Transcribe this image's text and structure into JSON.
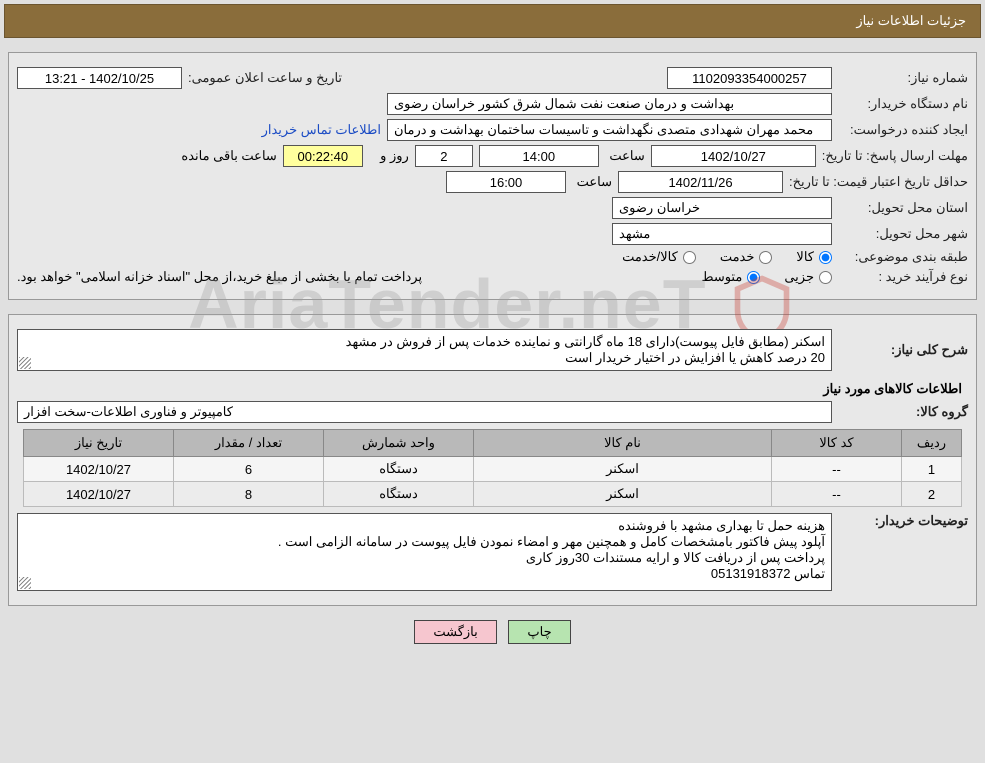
{
  "header": {
    "title": "جزئیات اطلاعات نیاز"
  },
  "fields": {
    "need_no_label": "شماره نیاز:",
    "need_no": "1102093354000257",
    "announce_label": "تاریخ و ساعت اعلان عمومی:",
    "announce_value": "1402/10/25 - 13:21",
    "buyer_label": "نام دستگاه خریدار:",
    "buyer_value": "بهداشت و درمان صنعت نفت شمال شرق کشور   خراسان رضوی",
    "requester_label": "ایجاد کننده درخواست:",
    "requester_value": "محمد مهران شهدادی متصدی نگهداشت و تاسیسات ساختمان بهداشت و درمان",
    "contact_link": "اطلاعات تماس خریدار",
    "resp_deadline_label": "مهلت ارسال پاسخ: تا تاریخ:",
    "resp_deadline_date": "1402/10/27",
    "hour_label": "ساعت",
    "resp_deadline_time": "14:00",
    "days_remaining": "2",
    "days_and_label": "روز و",
    "time_remaining": "00:22:40",
    "remaining_label": "ساعت باقی مانده",
    "price_valid_label": "حداقل تاریخ اعتبار قیمت: تا تاریخ:",
    "price_valid_date": "1402/11/26",
    "price_valid_time": "16:00",
    "province_label": "استان محل تحویل:",
    "province_value": "خراسان رضوی",
    "city_label": "شهر محل تحویل:",
    "city_value": "مشهد",
    "category_label": "طبقه بندی موضوعی:",
    "cat_opt_goods": "کالا",
    "cat_opt_service": "خدمت",
    "cat_opt_both": "کالا/خدمت",
    "purchase_type_label": "نوع فرآیند خرید :",
    "pt_small": "جزیی",
    "pt_medium": "متوسط",
    "purchase_note": "پرداخت تمام یا بخشی از مبلغ خرید،از محل \"اسناد خزانه اسلامی\" خواهد بود."
  },
  "desc": {
    "overall_label": "شرح کلی نیاز:",
    "overall_value": "اسکنر (مطابق فایل پیوست)دارای 18 ماه گارانتی و نماینده خدمات پس از فروش در مشهد\n20 درصد کاهش یا افزایش در اختیار خریدار است",
    "items_header": "اطلاعات کالاهای مورد نیاز",
    "group_label": "گروه کالا:",
    "group_value": "کامپیوتر و فناوری اطلاعات-سخت افزار"
  },
  "table": {
    "columns": [
      "ردیف",
      "کد کالا",
      "نام کالا",
      "واحد شمارش",
      "تعداد / مقدار",
      "تاریخ نیاز"
    ],
    "rows": [
      [
        "1",
        "--",
        "اسکنر",
        "دستگاه",
        "6",
        "1402/10/27"
      ],
      [
        "2",
        "--",
        "اسکنر",
        "دستگاه",
        "8",
        "1402/10/27"
      ]
    ],
    "col_widths": [
      "60px",
      "130px",
      "auto",
      "150px",
      "150px",
      "150px"
    ]
  },
  "buyer_notes": {
    "label": "توضیحات خریدار:",
    "value": "هزینه حمل تا بهداری مشهد با فروشنده\nآپلود پیش فاکتور بامشخصات کامل و همچنین مهر و امضاء نمودن فایل پیوست در سامانه الزامی است .\nپرداخت پس از دریافت کالا و ارایه مستندات  30روز کاری\nتماس 05131918372"
  },
  "actions": {
    "print": "چاپ",
    "back": "بازگشت"
  },
  "watermark": "AriaTender.neT",
  "colors": {
    "header_bg": "#8a6d3b",
    "link": "#1a4bc4",
    "btn_green": "#b7e4b0",
    "btn_pink": "#f6c6cf",
    "time_yellow": "#ffff9e"
  }
}
